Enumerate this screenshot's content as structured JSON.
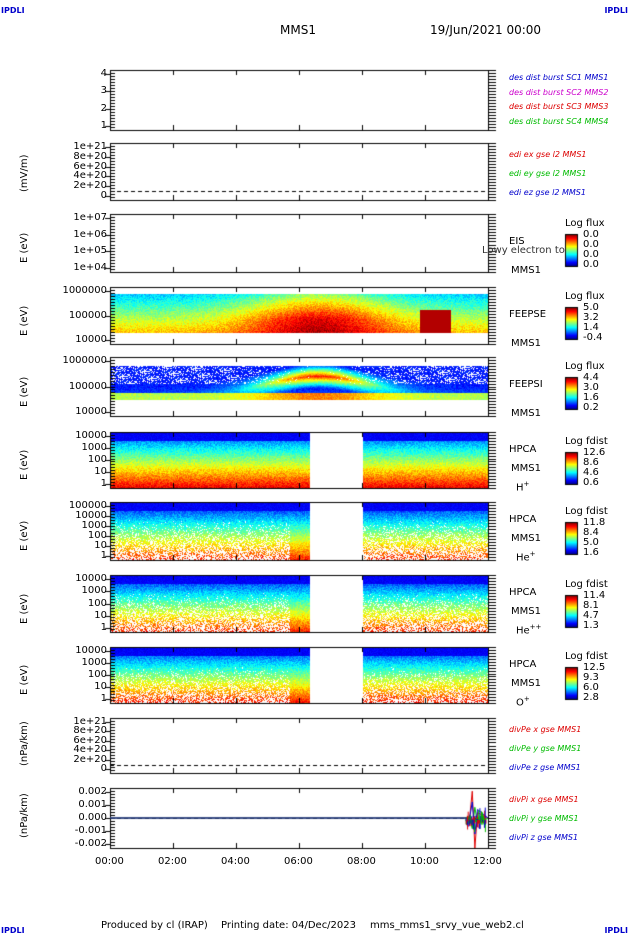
{
  "header": {
    "corner_tl": "IPDLI",
    "corner_tr": "IPDLI",
    "corner_bl": "IPDLI",
    "corner_br": "IPDLI",
    "spacecraft": "MMS1",
    "datetime": "19/Jun/2021 00:00"
  },
  "footer": {
    "produced": "Produced by cl (IRAP)",
    "printing": "Printing date: 04/Dec/2023",
    "script": "mms_mms1_srvy_vue_web2.cl"
  },
  "colors": {
    "mms1": "#0000cc",
    "mms2": "#cc00cc",
    "mms3": "#dd0000",
    "mms4": "#00bb00",
    "x": "#dd0000",
    "y": "#00bb00",
    "z": "#0000cc"
  },
  "chart_data": [
    {
      "type": "line",
      "panel": "dist_burst",
      "ylim": [
        0.5,
        4.5
      ],
      "y_ticks": [
        "4",
        "3",
        "2",
        "1"
      ],
      "legend": [
        "des dist burst SC1 MMS1",
        "des dist burst SC2 MMS2",
        "des dist burst SC3 MMS3",
        "des dist burst SC4 MMS4"
      ],
      "series": []
    },
    {
      "type": "line",
      "panel": "edi",
      "ylabel": "(mV/m)",
      "ylim": [
        -2e+20,
        1.1e+21
      ],
      "y_ticks": [
        "1e+21",
        "8e+20",
        "6e+20",
        "4e+20",
        "2e+20",
        "0"
      ],
      "legend": [
        "edi ex gse l2 MMS1",
        "edi ey gse l2 MMS1",
        "edi ez gse l2 MMS1"
      ],
      "zero_line": true,
      "series": []
    },
    {
      "type": "heatmap",
      "panel": "eis",
      "ylabel": "E (eV)",
      "y_scale": "log",
      "ylim": [
        10000,
        10000000
      ],
      "y_ticks": [
        "1e+07",
        "1e+06",
        "1e+05",
        "1e+04"
      ],
      "labels": [
        "EIS",
        "MMS1"
      ],
      "overlay_text": "Lowy electron to",
      "colorbar": {
        "title": "Log flux",
        "ticks": [
          "0.0",
          "0.0",
          "0.0",
          "0.0"
        ]
      }
    },
    {
      "type": "heatmap",
      "panel": "feeps_e",
      "ylabel": "E (eV)",
      "y_scale": "log",
      "ylim": [
        10000,
        1000000
      ],
      "y_ticks": [
        "1000000",
        "100000",
        "10000"
      ],
      "labels": [
        "FEEPSE",
        "MMS1"
      ],
      "colorbar": {
        "title": "Log flux",
        "ticks": [
          "5.0",
          "3.2",
          "1.4",
          "-0.4"
        ]
      }
    },
    {
      "type": "heatmap",
      "panel": "feeps_i",
      "ylabel": "E (eV)",
      "y_scale": "log",
      "ylim": [
        10000,
        1000000
      ],
      "y_ticks": [
        "1000000",
        "100000",
        "10000"
      ],
      "labels": [
        "FEEPSI",
        "MMS1"
      ],
      "colorbar": {
        "title": "Log flux",
        "ticks": [
          "4.4",
          "3.0",
          "1.6",
          "0.2"
        ]
      }
    },
    {
      "type": "heatmap",
      "panel": "hpca_h",
      "ylabel": "E (eV)",
      "y_scale": "log",
      "ylim": [
        1,
        30000
      ],
      "y_ticks": [
        "10000",
        "1000",
        "100",
        "10",
        "1"
      ],
      "labels": [
        "HPCA",
        "MMS1"
      ],
      "species": "H",
      "species_sup": "+",
      "data_gap": [
        "06:20",
        "08:00"
      ],
      "colorbar": {
        "title": "Log fdist",
        "ticks": [
          "12.6",
          "8.6",
          "4.6",
          "0.6"
        ]
      }
    },
    {
      "type": "heatmap",
      "panel": "hpca_he",
      "ylabel": "E (eV)",
      "y_scale": "log",
      "ylim": [
        1,
        100000
      ],
      "y_ticks": [
        "100000",
        "10000",
        "1000",
        "100",
        "10",
        "1"
      ],
      "labels": [
        "HPCA",
        "MMS1"
      ],
      "species": "He",
      "species_sup": "+",
      "data_gap": [
        "06:20",
        "08:00"
      ],
      "colorbar": {
        "title": "Log fdist",
        "ticks": [
          "11.8",
          "8.4",
          "5.0",
          "1.6"
        ]
      }
    },
    {
      "type": "heatmap",
      "panel": "hpca_hepp",
      "ylabel": "E (eV)",
      "y_scale": "log",
      "ylim": [
        1,
        10000
      ],
      "y_ticks": [
        "10000",
        "1000",
        "100",
        "10",
        "1"
      ],
      "labels": [
        "HPCA",
        "MMS1"
      ],
      "species": "He",
      "species_sup": "++",
      "data_gap": [
        "06:20",
        "08:00"
      ],
      "colorbar": {
        "title": "Log fdist",
        "ticks": [
          "11.4",
          "8.1",
          "4.7",
          "1.3"
        ]
      }
    },
    {
      "type": "heatmap",
      "panel": "hpca_o",
      "ylabel": "E (eV)",
      "y_scale": "log",
      "ylim": [
        1,
        10000
      ],
      "y_ticks": [
        "10000",
        "1000",
        "100",
        "10",
        "1"
      ],
      "labels": [
        "HPCA",
        "MMS1"
      ],
      "species": "O",
      "species_sup": "+",
      "data_gap": [
        "06:20",
        "08:00"
      ],
      "colorbar": {
        "title": "Log fdist",
        "ticks": [
          "12.5",
          "9.3",
          "6.0",
          "2.8"
        ]
      }
    },
    {
      "type": "line",
      "panel": "divpe",
      "ylabel": "(nPa/km)",
      "ylim": [
        -2e+20,
        1.1e+21
      ],
      "y_ticks": [
        "1e+21",
        "8e+20",
        "6e+20",
        "4e+20",
        "2e+20",
        "0"
      ],
      "legend": [
        "divPe x gse MMS1",
        "divPe y gse MMS1",
        "divPe z gse MMS1"
      ],
      "zero_line": true,
      "series": []
    },
    {
      "type": "line",
      "panel": "divpi",
      "ylabel": "(nPa/km)",
      "ylim": [
        -0.0028,
        0.0028
      ],
      "y_ticks": [
        "0.002",
        "0.001",
        "0.000",
        "-0.001",
        "-0.002"
      ],
      "legend": [
        "divPi x gse MMS1",
        "divPi y gse MMS1",
        "divPi z gse MMS1"
      ],
      "zero_line": true,
      "series": [
        {
          "name": "divPi x gse MMS1",
          "x": [
            "00:00",
            "11:25",
            "11:30",
            "11:35",
            "11:40",
            "12:00"
          ],
          "values": [
            0.0,
            0.0,
            0.0025,
            -0.0028,
            0.0005,
            0.0
          ]
        },
        {
          "name": "divPi y gse MMS1",
          "x": [
            "00:00",
            "11:25",
            "11:30",
            "11:35",
            "11:40",
            "12:00"
          ],
          "values": [
            0.0,
            0.0,
            -0.001,
            0.001,
            -0.0005,
            0.0
          ]
        },
        {
          "name": "divPi z gse MMS1",
          "x": [
            "00:00",
            "11:25",
            "11:30",
            "11:35",
            "11:40",
            "12:00"
          ],
          "values": [
            0.0,
            0.0,
            0.0015,
            -0.0015,
            0.0008,
            0.0
          ]
        }
      ]
    }
  ],
  "time_axis": {
    "ticks": [
      "00:00",
      "02:00",
      "04:00",
      "06:00",
      "08:00",
      "10:00",
      "12:00"
    ]
  }
}
